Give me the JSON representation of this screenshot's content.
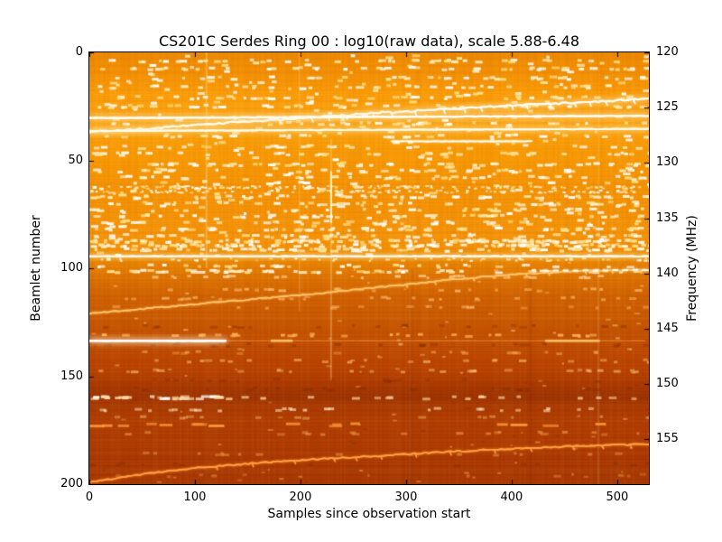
{
  "chart_data": {
    "type": "heatmap",
    "title": "CS201C Serdes Ring 00 : log10(raw data), scale 5.88-6.48",
    "xlabel": "Samples since observation start",
    "ylabel_left": "Beamlet number",
    "ylabel_right": "Frequency (MHz)",
    "scale_min": 5.88,
    "scale_max": 6.48,
    "xlim": [
      0,
      530
    ],
    "ylim_left": [
      0,
      200
    ],
    "y_axis_left_inverted": true,
    "freq_top_mhz": 120,
    "freq_span_mhz": 39.0625,
    "xticks": [
      0,
      100,
      200,
      300,
      400,
      500
    ],
    "yticks_left": [
      0,
      50,
      100,
      150,
      200
    ],
    "yticks_right": [
      120,
      125,
      130,
      135,
      140,
      145,
      150,
      155
    ],
    "colormap": "hot-orange",
    "frame_color": "#000000",
    "render": {
      "gradient": [
        {
          "p": 0.0,
          "c": "#ee8b00"
        },
        {
          "p": 0.05,
          "c": "#f59104"
        },
        {
          "p": 0.1,
          "c": "#fb9d08"
        },
        {
          "p": 0.165,
          "c": "#fda411"
        },
        {
          "p": 0.23,
          "c": "#f89a04"
        },
        {
          "p": 0.34,
          "c": "#f59204"
        },
        {
          "p": 0.44,
          "c": "#f69409"
        },
        {
          "p": 0.475,
          "c": "#ef8e02"
        },
        {
          "p": 0.5,
          "c": "#e67e00"
        },
        {
          "p": 0.53,
          "c": "#da6e00"
        },
        {
          "p": 0.575,
          "c": "#d06000"
        },
        {
          "p": 0.625,
          "c": "#c85700"
        },
        {
          "p": 0.68,
          "c": "#c04b00"
        },
        {
          "p": 0.73,
          "c": "#ba4300"
        },
        {
          "p": 0.768,
          "c": "#ac3b00"
        },
        {
          "p": 0.795,
          "c": "#9d3300"
        },
        {
          "p": 0.815,
          "c": "#a83900"
        },
        {
          "p": 0.85,
          "c": "#b23e00"
        },
        {
          "p": 0.92,
          "c": "#ad3a00"
        },
        {
          "p": 1.0,
          "c": "#a53600"
        }
      ],
      "row_noise": 0.09,
      "col_noise": 0.06,
      "vertical_streaks": [
        {
          "s": 111,
          "b0": 0,
          "b1": 100,
          "w": 2,
          "color": "rgba(255,235,190,0.30)"
        },
        {
          "s": 199,
          "b0": 0,
          "b1": 120,
          "w": 1.5,
          "color": "rgba(255,235,190,0.22)"
        },
        {
          "s": 229,
          "b0": 40,
          "b1": 152,
          "w": 2,
          "color": "rgba(255,220,140,0.35)"
        },
        {
          "s": 229,
          "b0": 55,
          "b1": 79,
          "w": 2,
          "color": "rgba(255,252,200,0.90)"
        },
        {
          "s": 306,
          "b0": 100,
          "b1": 200,
          "w": 3,
          "color": "rgba(90,20,0,0.10)"
        },
        {
          "s": 418,
          "b0": 100,
          "b1": 200,
          "w": 3,
          "color": "rgba(90,20,0,0.10)"
        },
        {
          "s": 482,
          "b0": 20,
          "b1": 200,
          "w": 2,
          "color": "rgba(255,230,170,0.15)"
        }
      ],
      "speckle_defaults": {
        "len": [
          3,
          9
        ],
        "h": 3,
        "colors": [
          "#ffffff",
          "#fff3d0",
          "#ffe08a"
        ],
        "a": 1,
        "x0": 0,
        "x1": 530
      },
      "speckle_rows": [
        {
          "b": 4,
          "n": 42
        },
        {
          "b": 7.5,
          "n": 48
        },
        {
          "b": 12,
          "n": 34
        },
        {
          "b": 16,
          "n": 30
        },
        {
          "b": 21,
          "n": 40
        },
        {
          "b": 25,
          "n": 42
        },
        {
          "b": 33,
          "n": 26
        },
        {
          "b": 39,
          "n": 30
        },
        {
          "b": 44,
          "n": 28
        },
        {
          "b": 47,
          "n": 44
        },
        {
          "b": 52,
          "n": 50
        },
        {
          "b": 55,
          "n": 34
        },
        {
          "b": 58,
          "n": 40
        },
        {
          "b": 62.5,
          "n": 150,
          "len": [
            2,
            4
          ],
          "h": 2
        },
        {
          "b": 64.5,
          "n": 120,
          "len": [
            2,
            4
          ],
          "h": 2
        },
        {
          "b": 67,
          "n": 48
        },
        {
          "b": 70,
          "n": 38
        },
        {
          "b": 73,
          "n": 32
        },
        {
          "b": 76,
          "n": 38
        },
        {
          "b": 79,
          "n": 30
        },
        {
          "b": 82,
          "n": 55
        },
        {
          "b": 85,
          "n": 38
        },
        {
          "b": 87.5,
          "n": 130,
          "len": [
            3,
            7
          ]
        },
        {
          "b": 89.5,
          "n": 120,
          "len": [
            3,
            7
          ]
        },
        {
          "b": 91.5,
          "n": 70
        },
        {
          "b": 96,
          "n": 55,
          "len": [
            2,
            5
          ],
          "h": 2
        },
        {
          "b": 99,
          "n": 36
        },
        {
          "b": 101.5,
          "n": 60,
          "len": [
            4,
            10
          ]
        },
        {
          "b": 104,
          "n": 26,
          "colors": [
            "#ffd9a0"
          ],
          "a": 0.8
        },
        {
          "b": 110,
          "n": 22,
          "colors": [
            "#ffc87d"
          ],
          "a": 0.7
        },
        {
          "b": 114,
          "n": 26,
          "colors": [
            "#ffc87d"
          ],
          "a": 0.6
        },
        {
          "b": 118,
          "n": 18,
          "colors": [
            "#ffc87d"
          ],
          "a": 0.5
        },
        {
          "b": 127,
          "n": 22,
          "colors": [
            "#7f2800"
          ],
          "a": 0.45
        },
        {
          "b": 131,
          "n": 28,
          "colors": [
            "#ffb45a"
          ],
          "a": 0.9
        },
        {
          "b": 135.5,
          "n": 24,
          "colors": [
            "#7f2800"
          ],
          "a": 0.5
        },
        {
          "b": 139,
          "n": 18,
          "colors": [
            "#ffb45a"
          ],
          "a": 0.55
        },
        {
          "b": 143,
          "n": 22,
          "colors": [
            "#ffc87d"
          ],
          "a": 0.6
        },
        {
          "b": 147.5,
          "n": 26,
          "colors": [
            "#ffc87d"
          ],
          "a": 0.6
        },
        {
          "b": 152,
          "n": 18,
          "colors": [
            "#7f2800"
          ],
          "a": 0.4
        },
        {
          "b": 156,
          "n": 20,
          "colors": [
            "#7f2800"
          ],
          "a": 0.45
        },
        {
          "b": 160,
          "n": 26,
          "x1": 120,
          "len": [
            5,
            12
          ],
          "colors": [
            "#ffffff",
            "#ffd9a0"
          ],
          "a": 0.95
        },
        {
          "b": 160,
          "n": 22,
          "len": [
            4,
            9
          ],
          "colors": [
            "#ffd9a0"
          ],
          "a": 0.8
        },
        {
          "b": 165.5,
          "n": 26,
          "colors": [
            "#ffe7c0"
          ],
          "a": 0.75
        },
        {
          "b": 169,
          "n": 16,
          "colors": [
            "#ffc87d"
          ],
          "a": 0.5
        },
        {
          "b": 172.5,
          "n": 16,
          "len": [
            10,
            20
          ],
          "colors": [
            "#ff9e3e"
          ],
          "a": 0.9
        },
        {
          "b": 176.5,
          "n": 20,
          "colors": [
            "#ffb45a"
          ],
          "a": 0.5
        },
        {
          "b": 186,
          "n": 16,
          "colors": [
            "#ffb45a"
          ],
          "a": 0.5
        },
        {
          "b": 191,
          "n": 14,
          "colors": [
            "#7f2800"
          ],
          "a": 0.4
        },
        {
          "b": 196,
          "n": 12,
          "colors": [
            "#ffb45a"
          ],
          "a": 0.4
        }
      ],
      "speckle_regions": [
        {
          "b0": 1,
          "b1": 60,
          "n": 220
        },
        {
          "b0": 60,
          "b1": 95,
          "n": 200
        },
        {
          "b0": 96,
          "b1": 150,
          "n": 60,
          "colors": [
            "#ffd9a0"
          ],
          "a": 0.5,
          "len": [
            2,
            6
          ],
          "h": 2
        },
        {
          "b0": 150,
          "b1": 199,
          "n": 70,
          "colors": [
            "#ffb45a",
            "#8c2e00"
          ],
          "a": 0.5,
          "len": [
            2,
            6
          ],
          "h": 2
        }
      ],
      "lines": [
        {
          "name": "top-drifting-line",
          "pts": [
            [
              0,
              37
            ],
            [
              60,
              35
            ],
            [
              120,
              33
            ],
            [
              200,
              30.5
            ],
            [
              260,
              28.5
            ],
            [
              330,
              26.5
            ],
            [
              400,
              24.5
            ],
            [
              470,
              23
            ],
            [
              530,
              21.5
            ]
          ],
          "color": "#ffffff",
          "w": 2,
          "glow": 6,
          "glowColor": "rgba(255,240,190,0.8)",
          "wavy": 0.8,
          "comb": {
            "amp": 2.2,
            "spacing": 22,
            "from": 180
          }
        },
        {
          "name": "line-b30",
          "pts": [
            [
              0,
              30.4
            ],
            [
              530,
              29.4
            ]
          ],
          "color": "#ffffff",
          "w": 2.2,
          "glow": 7,
          "glowColor": "rgba(255,235,170,0.9)",
          "wavy": 0.2
        },
        {
          "name": "line-b36",
          "pts": [
            [
              0,
              36.4
            ],
            [
              530,
              35.4
            ]
          ],
          "color": "#fffdf2",
          "w": 2,
          "glow": 6,
          "glowColor": "rgba(255,230,150,0.85)",
          "wavy": 0.2
        },
        {
          "name": "segment-b41",
          "pts": [
            [
              286,
              41.2
            ],
            [
              420,
              41.2
            ]
          ],
          "color": "#ffffff",
          "w": 1.6,
          "glow": 3,
          "glowColor": "rgba(255,235,170,0.6)",
          "wavy": 0.15
        },
        {
          "name": "line-b94",
          "pts": [
            [
              0,
              94.4
            ],
            [
              530,
              94.4
            ]
          ],
          "color": "#ffffff",
          "w": 1.8,
          "glow": 5,
          "glowColor": "rgba(255,240,190,0.8)",
          "wavy": 0.15
        },
        {
          "name": "mid-drifting-line",
          "pts": [
            [
              0,
              121
            ],
            [
              80,
              117.5
            ],
            [
              150,
              114.5
            ],
            [
              220,
              111.5
            ],
            [
              280,
              108.5
            ],
            [
              340,
              105.5
            ],
            [
              390,
              103.2
            ],
            [
              430,
              102
            ],
            [
              465,
              101.2
            ],
            [
              530,
              100.7
            ]
          ],
          "color": "#ffc469",
          "w": 1.6,
          "glow": 3,
          "glowColor": "rgba(255,180,90,0.5)",
          "wavy": 0.5,
          "comb": {
            "amp": 1.6,
            "spacing": 26,
            "from": 300
          }
        },
        {
          "name": "mid-line-white-tail",
          "pts": [
            [
              430,
              101.2
            ],
            [
              530,
              100.8
            ]
          ],
          "color": "#ffffff",
          "w": 1.6,
          "glow": 3,
          "glowColor": "rgba(255,240,190,0.7)",
          "wavy": 0.3,
          "dash": [
            6,
            5
          ]
        },
        {
          "name": "line-b133-bright",
          "pts": [
            [
              0,
              133.6
            ],
            [
              130,
              133.6
            ]
          ],
          "color": "#ffffff",
          "w": 2.6,
          "glow": 7,
          "glowColor": "rgba(255,235,200,0.95)",
          "wavy": 0.1
        },
        {
          "name": "line-b133-faint",
          "pts": [
            [
              130,
              133.6
            ],
            [
              530,
              133.6
            ]
          ],
          "color": "rgba(255,170,70,0.5)",
          "w": 1.4,
          "glow": 0,
          "glowColor": "rgba(0,0,0,0)",
          "wavy": 0.1
        },
        {
          "name": "line-b133-seg1",
          "pts": [
            [
              172,
              133.6
            ],
            [
              195,
              133.6
            ]
          ],
          "color": "#ffc469",
          "w": 1.8,
          "glow": 2,
          "glowColor": "rgba(255,190,100,0.5)",
          "wavy": 0
        },
        {
          "name": "line-b133-seg2",
          "pts": [
            [
              432,
              133.6
            ],
            [
              484,
              133.6
            ]
          ],
          "color": "#ffc469",
          "w": 1.8,
          "glow": 2,
          "glowColor": "rgba(255,190,100,0.5)",
          "wavy": 0
        },
        {
          "name": "bottom-drifting-line",
          "pts": [
            [
              0,
              199
            ],
            [
              50,
              195.5
            ],
            [
              100,
              192.5
            ],
            [
              150,
              190.5
            ],
            [
              210,
              188.5
            ],
            [
              270,
              187
            ],
            [
              330,
              185.2
            ],
            [
              390,
              183.8
            ],
            [
              450,
              182.6
            ],
            [
              530,
              181.4
            ]
          ],
          "color": "#ffa040",
          "w": 1.7,
          "glow": 3,
          "glowColor": "rgba(255,150,60,0.45)",
          "wavy": 0.6,
          "comb": {
            "amp": 1.8,
            "spacing": 30,
            "from": 120
          }
        }
      ]
    }
  }
}
